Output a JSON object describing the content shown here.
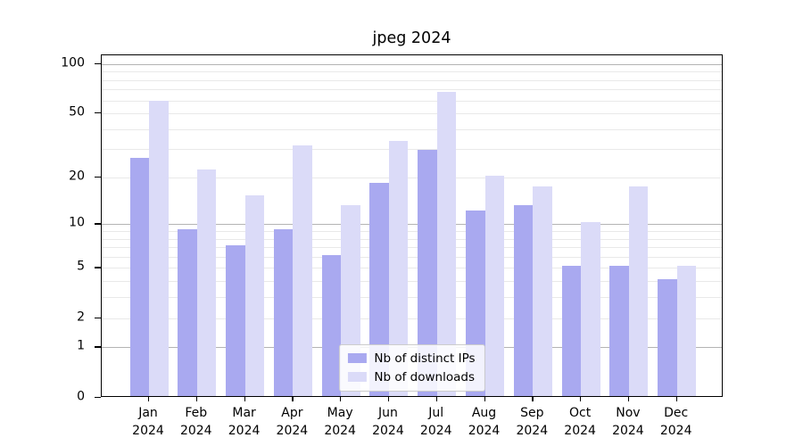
{
  "title": "jpeg 2024",
  "chart_data": {
    "type": "bar",
    "title": "jpeg 2024",
    "categories": [
      "Jan",
      "Feb",
      "Mar",
      "Apr",
      "May",
      "Jun",
      "Jul",
      "Aug",
      "Sep",
      "Oct",
      "Nov",
      "Dec"
    ],
    "category_year": "2024",
    "series": [
      {
        "name": "Nb of distinct IPs",
        "color": "#a9a9f0",
        "values": [
          26,
          9,
          7,
          9,
          6,
          18,
          29,
          12,
          13,
          5,
          5,
          4
        ]
      },
      {
        "name": "Nb of downloads",
        "color": "#dbdbf8",
        "values": [
          58,
          22,
          15,
          31,
          13,
          33,
          66,
          20,
          17,
          10,
          17,
          5
        ]
      }
    ],
    "xlabel": "",
    "ylabel": "",
    "y_axis": {
      "scale": "log1p",
      "tick_labels": [
        0,
        1,
        2,
        5,
        10,
        20,
        50,
        100
      ],
      "major_gridlines": [
        1,
        10,
        100
      ],
      "minor_gridlines": [
        2,
        3,
        4,
        5,
        6,
        7,
        8,
        9,
        20,
        30,
        40,
        50,
        60,
        70,
        80,
        90
      ],
      "ylim": [
        0,
        113
      ]
    },
    "grid": true,
    "legend_position": "lower center",
    "colors": {
      "bar_dark": "#a9a9f0",
      "bar_light": "#dbdbf8",
      "grid_major": "#b4b4b4",
      "grid_minor": "#e9e9e9",
      "spine": "#000000",
      "background": "#ffffff"
    }
  }
}
